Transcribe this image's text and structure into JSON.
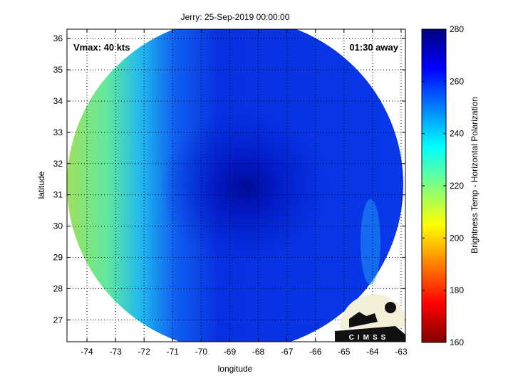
{
  "chart_data": {
    "type": "heatmap",
    "title": "Jerry: 25-Sep-2019 00:00:00",
    "xlabel": "longitude",
    "ylabel": "latitude",
    "xlim": [
      -74.7,
      -62.85
    ],
    "ylim": [
      26.3,
      36.3
    ],
    "xticks": [
      -74,
      -73,
      -72,
      -71,
      -70,
      -69,
      -68,
      -67,
      -66,
      -65,
      -64,
      -63
    ],
    "yticks": [
      27,
      28,
      29,
      30,
      31,
      32,
      33,
      34,
      35,
      36
    ],
    "grid": true,
    "annotations": {
      "vmax": "Vmax: 40 kts",
      "time_offset": "01:30 away"
    },
    "storm_center": {
      "lon": -69,
      "lat": 31.2
    },
    "colorbar": {
      "label": "Brightness Temp - Horizontal Polarization",
      "colormap": "jet",
      "range": [
        160,
        280
      ],
      "ticks": [
        160,
        180,
        200,
        220,
        240,
        260,
        280
      ]
    }
  },
  "logo": {
    "text": "CIMSS"
  }
}
